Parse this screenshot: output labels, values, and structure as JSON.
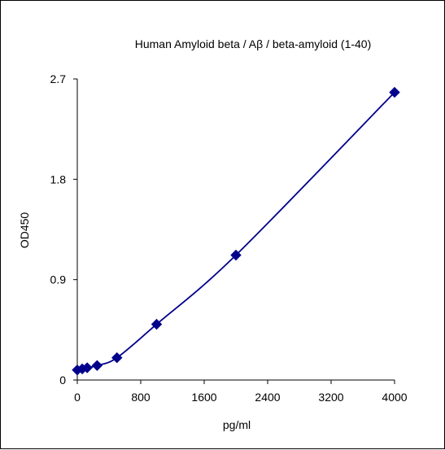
{
  "chart_data": {
    "type": "scatter",
    "title": "Human Amyloid beta / Aβ / beta-amyloid (1-40)",
    "xlabel": "pg/ml",
    "ylabel": "OD450",
    "xlim": [
      0,
      4000
    ],
    "ylim": [
      0,
      2.7
    ],
    "x_ticks": [
      0,
      800,
      1600,
      2400,
      3200,
      4000
    ],
    "y_ticks": [
      0,
      0.9,
      1.8,
      2.7
    ],
    "x_tick_labels": [
      "0",
      "800",
      "1600",
      "2400",
      "3200",
      "4000"
    ],
    "y_tick_labels": [
      "0",
      "0.9",
      "1.8",
      "2.7"
    ],
    "grid": false,
    "legend": "none",
    "series": [
      {
        "x": [
          0,
          62.5,
          125,
          250,
          500,
          1000,
          2000,
          4000
        ],
        "y": [
          0.09,
          0.1,
          0.11,
          0.13,
          0.2,
          0.5,
          1.12,
          2.58
        ],
        "marker": "diamond",
        "fit_line": true
      }
    ],
    "colors": {
      "series": "#00008b",
      "axis": "#000000"
    }
  }
}
